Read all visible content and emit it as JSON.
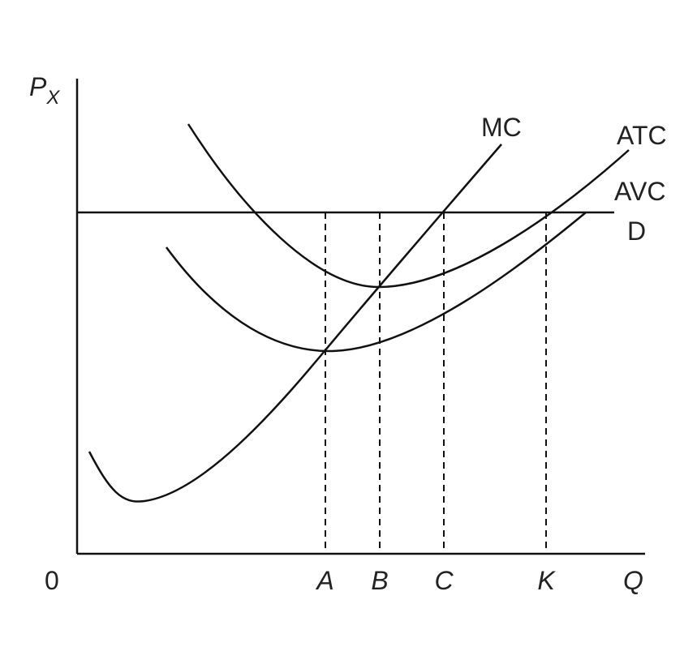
{
  "axes": {
    "y_label": "P",
    "y_label_sub": "X",
    "origin": "0",
    "x_label": "Q"
  },
  "quantities": [
    "A",
    "B",
    "C",
    "K"
  ],
  "curves": {
    "mc": "MC",
    "atc": "ATC",
    "avc": "AVC",
    "demand": "D"
  }
}
